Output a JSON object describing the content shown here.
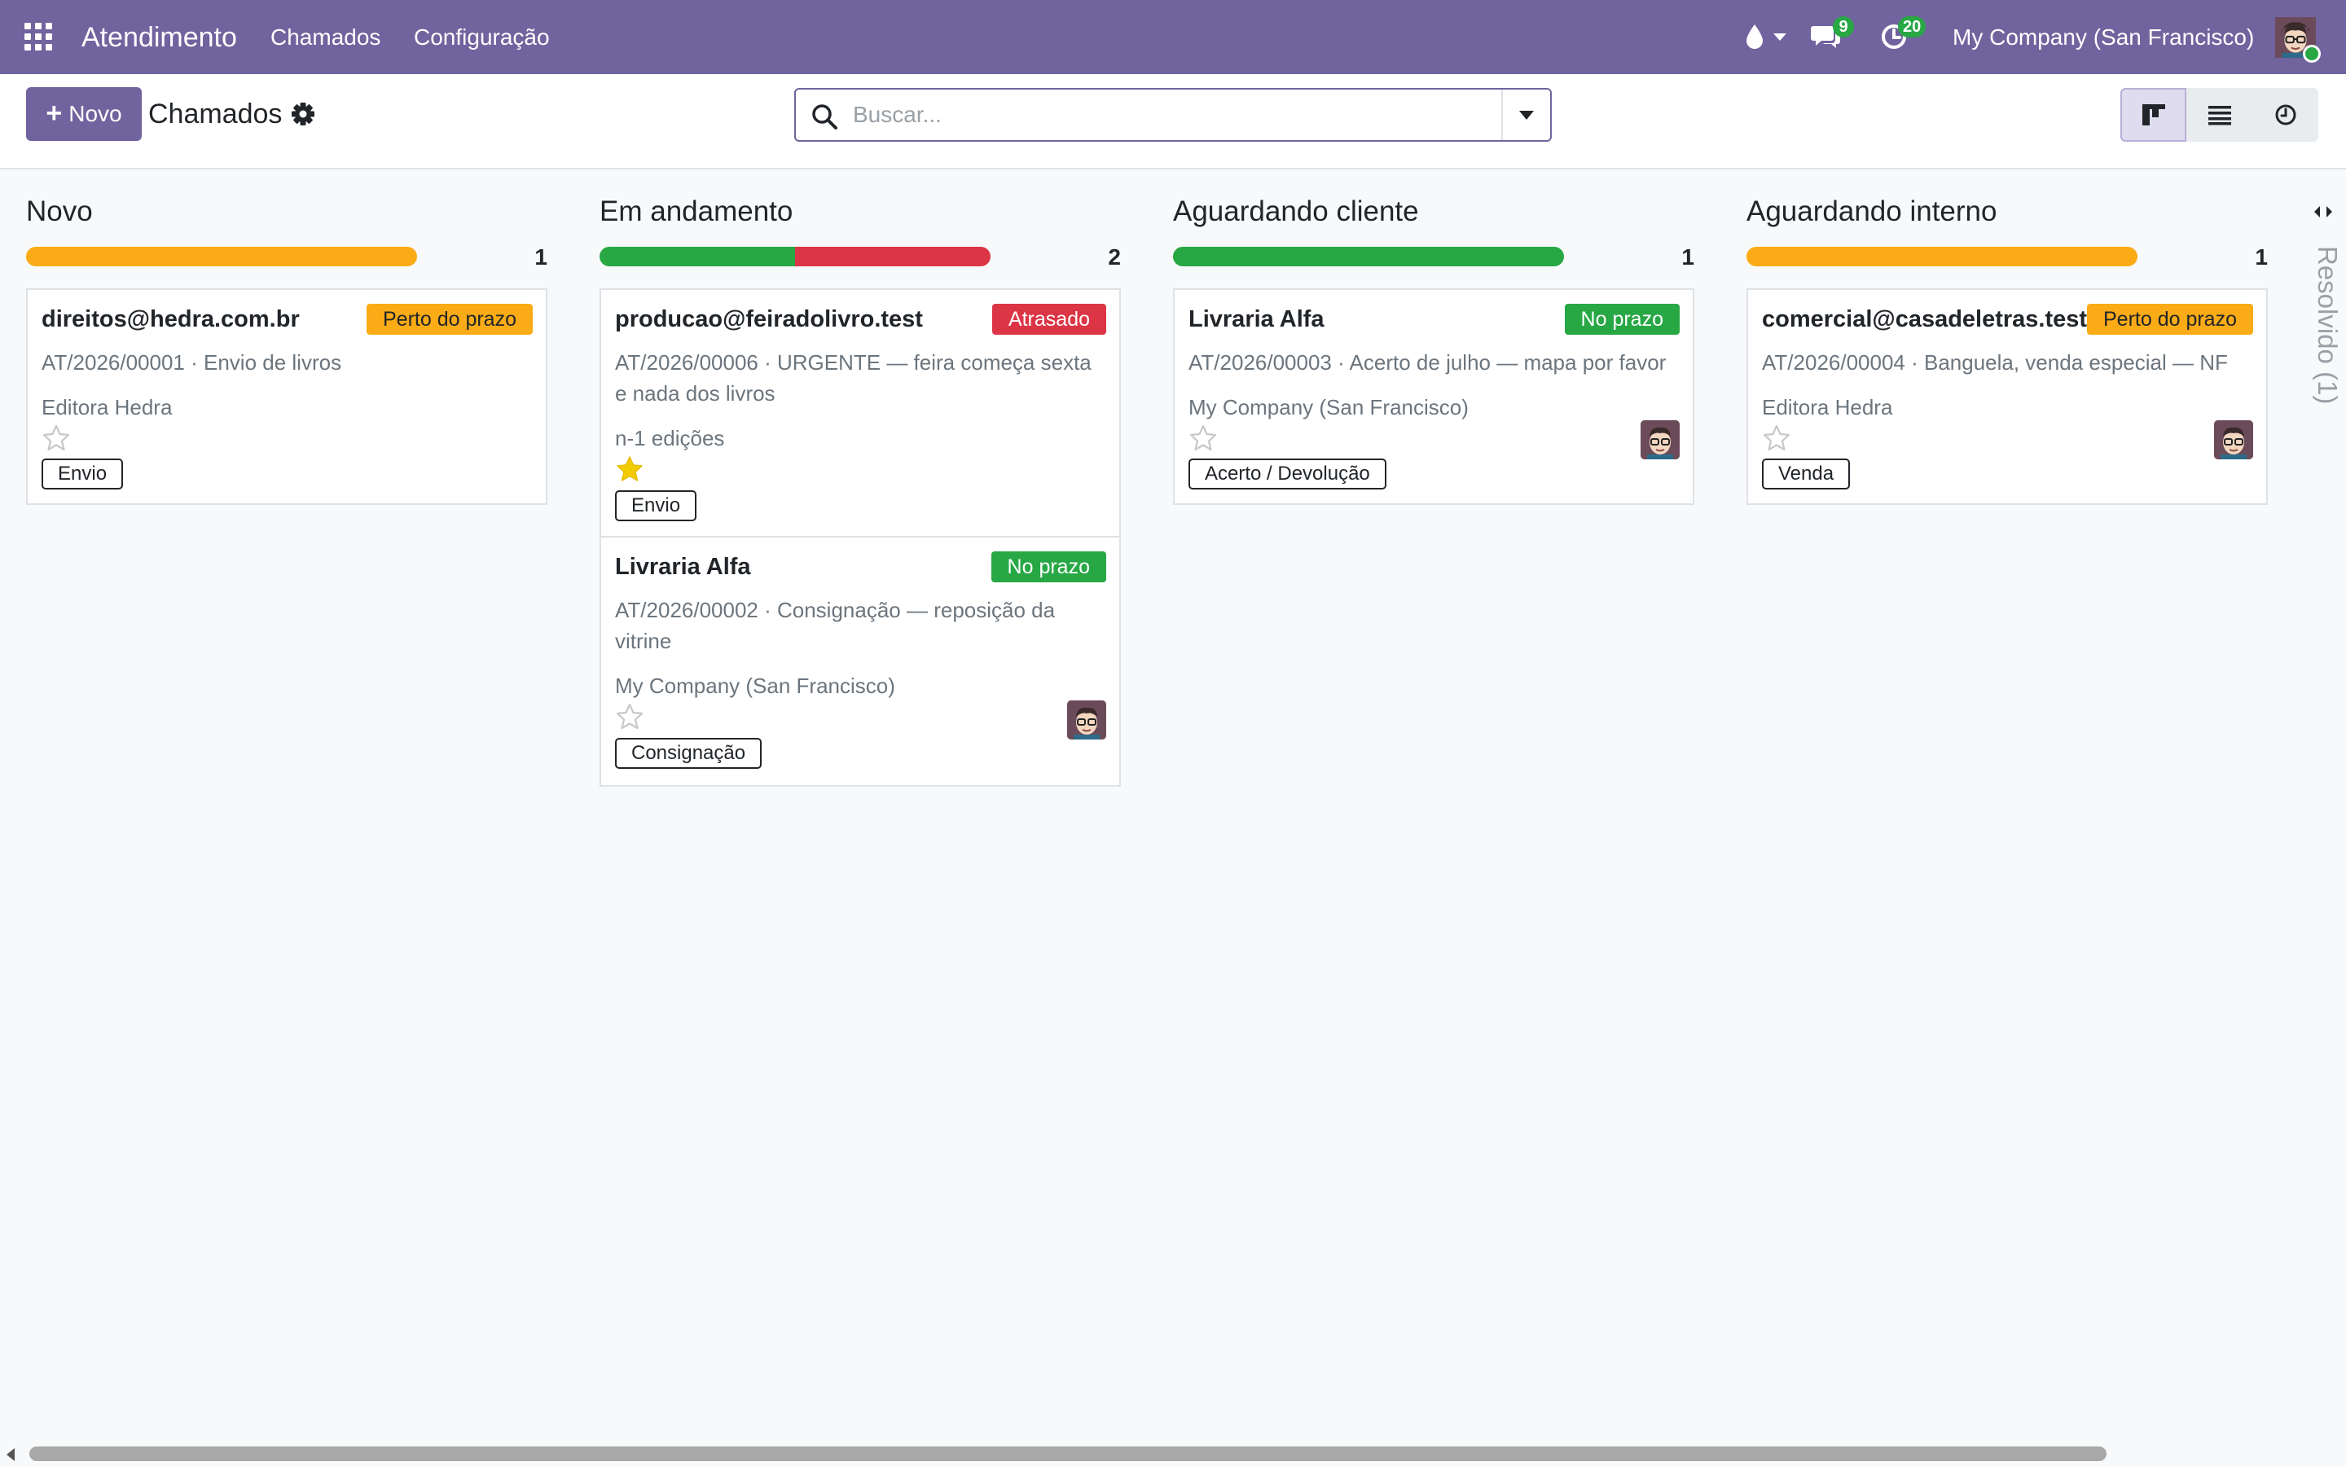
{
  "navbar": {
    "app_name": "Atendimento",
    "menu": [
      "Chamados",
      "Configuração"
    ],
    "messages_count": "9",
    "activities_count": "20",
    "company": "My Company (San Francisco)",
    "bg_color": "#71639e"
  },
  "control": {
    "new_button": "Novo",
    "title": "Chamados",
    "search_placeholder": "Buscar...",
    "views": [
      "kanban",
      "list",
      "activity"
    ]
  },
  "columns": [
    {
      "title": "Novo",
      "count": "1",
      "progress": [
        {
          "status": "near",
          "fraction": 1.0,
          "color": "#fbab16"
        }
      ],
      "cards": [
        {
          "title": "direitos@hedra.com.br",
          "deadline": "Perto do prazo",
          "deadline_status": "near",
          "description": "AT/2026/00001 · Envio de livros",
          "partner": "Editora Hedra",
          "starred": false,
          "tag": "Envio",
          "has_avatar": false
        }
      ]
    },
    {
      "title": "Em andamento",
      "count": "2",
      "progress": [
        {
          "status": "ok",
          "fraction": 0.5,
          "color": "#28a745"
        },
        {
          "status": "late",
          "fraction": 0.5,
          "color": "#dc3545"
        }
      ],
      "cards": [
        {
          "title": "producao@feiradolivro.test",
          "deadline": "Atrasado",
          "deadline_status": "late",
          "description": "AT/2026/00006 · URGENTE — feira começa sexta e nada dos livros",
          "partner": "n-1 edições",
          "starred": true,
          "tag": "Envio",
          "has_avatar": false
        },
        {
          "title": "Livraria Alfa",
          "deadline": "No prazo",
          "deadline_status": "ok",
          "description": "AT/2026/00002 · Consignação — reposição da vitrine",
          "partner": "My Company (San Francisco)",
          "starred": false,
          "tag": "Consignação",
          "has_avatar": true
        }
      ]
    },
    {
      "title": "Aguardando cliente",
      "count": "1",
      "progress": [
        {
          "status": "ok",
          "fraction": 1.0,
          "color": "#28a745"
        }
      ],
      "cards": [
        {
          "title": "Livraria Alfa",
          "deadline": "No prazo",
          "deadline_status": "ok",
          "description": "AT/2026/00003 · Acerto de julho — mapa por favor",
          "partner": "My Company (San Francisco)",
          "starred": false,
          "tag": "Acerto / Devolução",
          "has_avatar": true
        }
      ]
    },
    {
      "title": "Aguardando interno",
      "count": "1",
      "progress": [
        {
          "status": "near",
          "fraction": 1.0,
          "color": "#fbab16"
        }
      ],
      "cards": [
        {
          "title": "comercial@casadeletras.test",
          "deadline": "Perto do prazo",
          "deadline_status": "near",
          "description": "AT/2026/00004 · Banguela, venda especial — NF",
          "partner": "Editora Hedra",
          "starred": false,
          "tag": "Venda",
          "has_avatar": true
        }
      ]
    }
  ],
  "folded_column": {
    "label": "Resolvido (1)"
  }
}
